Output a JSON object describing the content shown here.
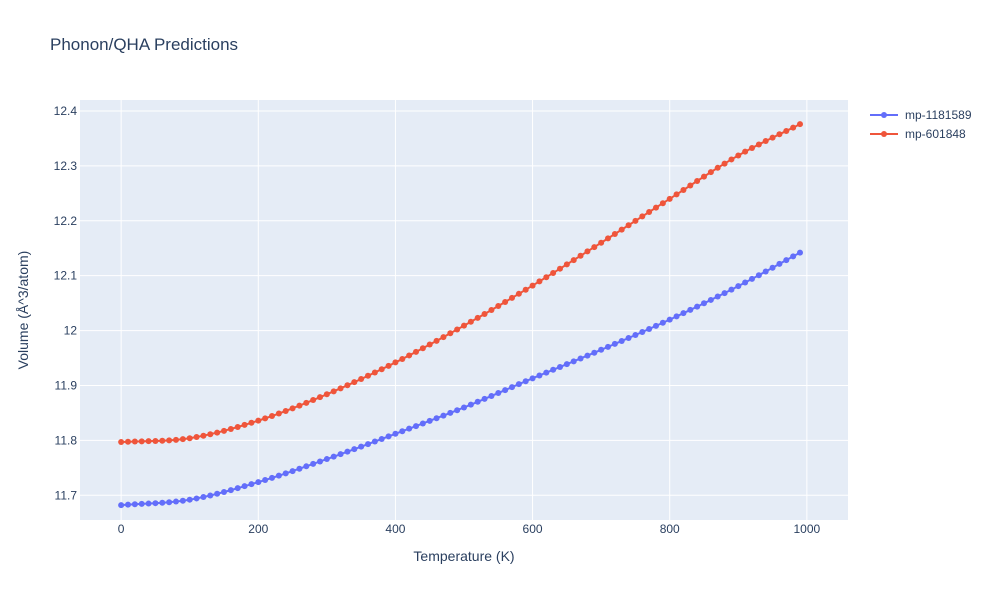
{
  "chart_data": {
    "type": "line",
    "title": "Phonon/QHA Predictions",
    "xlabel": "Temperature (K)",
    "ylabel": "Volume (Å^3/atom)",
    "xlim": [
      -60,
      1060
    ],
    "ylim": [
      11.655,
      12.42
    ],
    "x_ticks": [
      0,
      200,
      400,
      600,
      800,
      1000
    ],
    "x_tick_labels": [
      "0",
      "200",
      "400",
      "600",
      "800",
      "1000"
    ],
    "y_ticks": [
      11.7,
      11.8,
      11.9,
      12.0,
      12.1,
      12.2,
      12.3,
      12.4
    ],
    "y_tick_labels": [
      "11.7",
      "11.8",
      "11.9",
      "12",
      "12.1",
      "12.2",
      "12.3",
      "12.4"
    ],
    "grid": true,
    "legend_position": "top-right",
    "series": [
      {
        "name": "mp-1181589",
        "color": "#636efa",
        "x": [
          0,
          100,
          200,
          300,
          400,
          500,
          600,
          700,
          800,
          900,
          990
        ],
        "y": [
          11.682,
          11.692,
          11.724,
          11.766,
          11.812,
          11.86,
          11.913,
          11.965,
          12.02,
          12.081,
          12.142
        ]
      },
      {
        "name": "mp-601848",
        "color": "#ef553b",
        "x": [
          0,
          100,
          200,
          300,
          400,
          500,
          600,
          700,
          800,
          900,
          990
        ],
        "y": [
          11.797,
          11.804,
          11.836,
          11.884,
          11.942,
          12.009,
          12.082,
          12.16,
          12.24,
          12.319,
          12.376
        ]
      }
    ]
  }
}
